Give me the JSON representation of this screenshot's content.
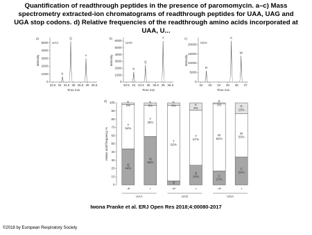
{
  "title": "Quantification of readthrough peptides in the presence of paromomycin. a–c) Mass spectrometry extracted-ion chromatograms of readthrough peptides for UAA, UAG and UGA stop codons. d) Relative frequencies of the readthrough amino acids incorporated at UAA, U...",
  "citation": "Iwona Pranke et al. ERJ Open Res 2018;4:00080-2017",
  "copyright": "©2018 by European Respiratory Society",
  "chart_data": [
    {
      "type": "peaks",
      "panel": "a)",
      "label": "UAA",
      "x_label": "Time min",
      "y_label": "Intensity",
      "x": [
        34.2,
        34.8,
        35.9
      ],
      "values": [
        700,
        5200,
        3000
      ],
      "peak_labels": [
        "K",
        "Q",
        "Y"
      ],
      "xlim": [
        33.3,
        36.7
      ],
      "xticks": [
        33.5,
        34,
        34.5,
        35,
        35.5,
        36,
        36.5
      ],
      "ylim": [
        0,
        5500
      ],
      "yticks": [
        0,
        1000,
        2000,
        3000,
        4000,
        5000
      ],
      "color": "#555555"
    },
    {
      "type": "peaks",
      "panel": "b)",
      "label": "UAG",
      "x_label": "Time min",
      "y_label": "Intensity",
      "x": [
        34.0,
        34.8,
        36.0
      ],
      "values": [
        1500,
        2500,
        6000
      ],
      "peak_labels": [
        "K",
        "Q",
        "Y"
      ],
      "xlim": [
        33.3,
        36.7
      ],
      "xticks": [
        33.5,
        34,
        34.5,
        35,
        35.5,
        36,
        36.5
      ],
      "ylim": [
        0,
        6300
      ],
      "yticks": [
        0,
        1000,
        2000,
        3000,
        4000,
        5000,
        6000
      ],
      "color": "#555555"
    },
    {
      "type": "peaks",
      "panel": "c)",
      "label": "UGA",
      "x_label": "Time min",
      "y_label": "Intensity",
      "x": [
        32.6,
        35.4,
        36.5
      ],
      "values": [
        6000,
        22000,
        14000
      ],
      "peak_labels": [
        "R",
        "C",
        "W"
      ],
      "xlim": [
        31.7,
        37.3
      ],
      "xticks": [
        32,
        33,
        34,
        35,
        36,
        37
      ],
      "ylim": [
        0,
        23000
      ],
      "yticks": [
        0,
        5000,
        10000,
        15000,
        20000
      ],
      "color": "#555555"
    },
    {
      "type": "stacked_bar",
      "panel": "d)",
      "y_label": "Amino acid frequency %",
      "ylim": [
        0,
        100
      ],
      "yticks": [
        0,
        10,
        20,
        30,
        40,
        50,
        60,
        70,
        80,
        90,
        100
      ],
      "segment_colors": [
        "#a6a6a6",
        "#ffffff",
        "#e4e4e4"
      ],
      "groups": [
        {
          "name": "UAA",
          "bars": [
            {
              "category": "–P",
              "segments": [
                {
                  "name": "Q",
                  "value": 44,
                  "value_label": "44%"
                },
                {
                  "name": "Y",
                  "value": 54,
                  "value_label": "54%"
                },
                {
                  "name": "K",
                  "value": 2,
                  "value_label": "2%"
                }
              ]
            },
            {
              "category": "+",
              "segments": [
                {
                  "name": "Q",
                  "value": 59,
                  "value_label": "59%"
                },
                {
                  "name": "Y",
                  "value": 38,
                  "value_label": "38%"
                },
                {
                  "name": "K",
                  "value": 3,
                  "value_label": "3%"
                }
              ]
            }
          ]
        },
        {
          "name": "UAG",
          "bars": [
            {
              "category": "–P",
              "segments": [
                {
                  "name": "Q",
                  "value": 5
                },
                {
                  "name": "Y",
                  "value": 92,
                  "value_label": "92%"
                },
                {
                  "name": "K",
                  "value": 3,
                  "value_label": "3%"
                }
              ]
            },
            {
              "category": "+",
              "segments": [
                {
                  "name": "Q",
                  "value": 24,
                  "value_label": "24%"
                },
                {
                  "name": "Y",
                  "value": 67,
                  "value_label": "67%"
                },
                {
                  "name": "K",
                  "value": 9,
                  "value_label": "9%"
                }
              ]
            }
          ]
        },
        {
          "name": "UGA",
          "bars": [
            {
              "category": "–P",
              "segments": [
                {
                  "name": "C",
                  "value": 17,
                  "value_label": "17%"
                },
                {
                  "name": "W",
                  "value": 82,
                  "value_label": "82%"
                },
                {
                  "name": "R",
                  "value": 1,
                  "value_label": "1%"
                }
              ]
            },
            {
              "category": "+",
              "segments": [
                {
                  "name": "C",
                  "value": 34,
                  "value_label": "34%"
                },
                {
                  "name": "W",
                  "value": 53,
                  "value_label": "53%"
                },
                {
                  "name": "R",
                  "value": 13,
                  "value_label": "13%"
                }
              ]
            }
          ]
        }
      ]
    }
  ]
}
